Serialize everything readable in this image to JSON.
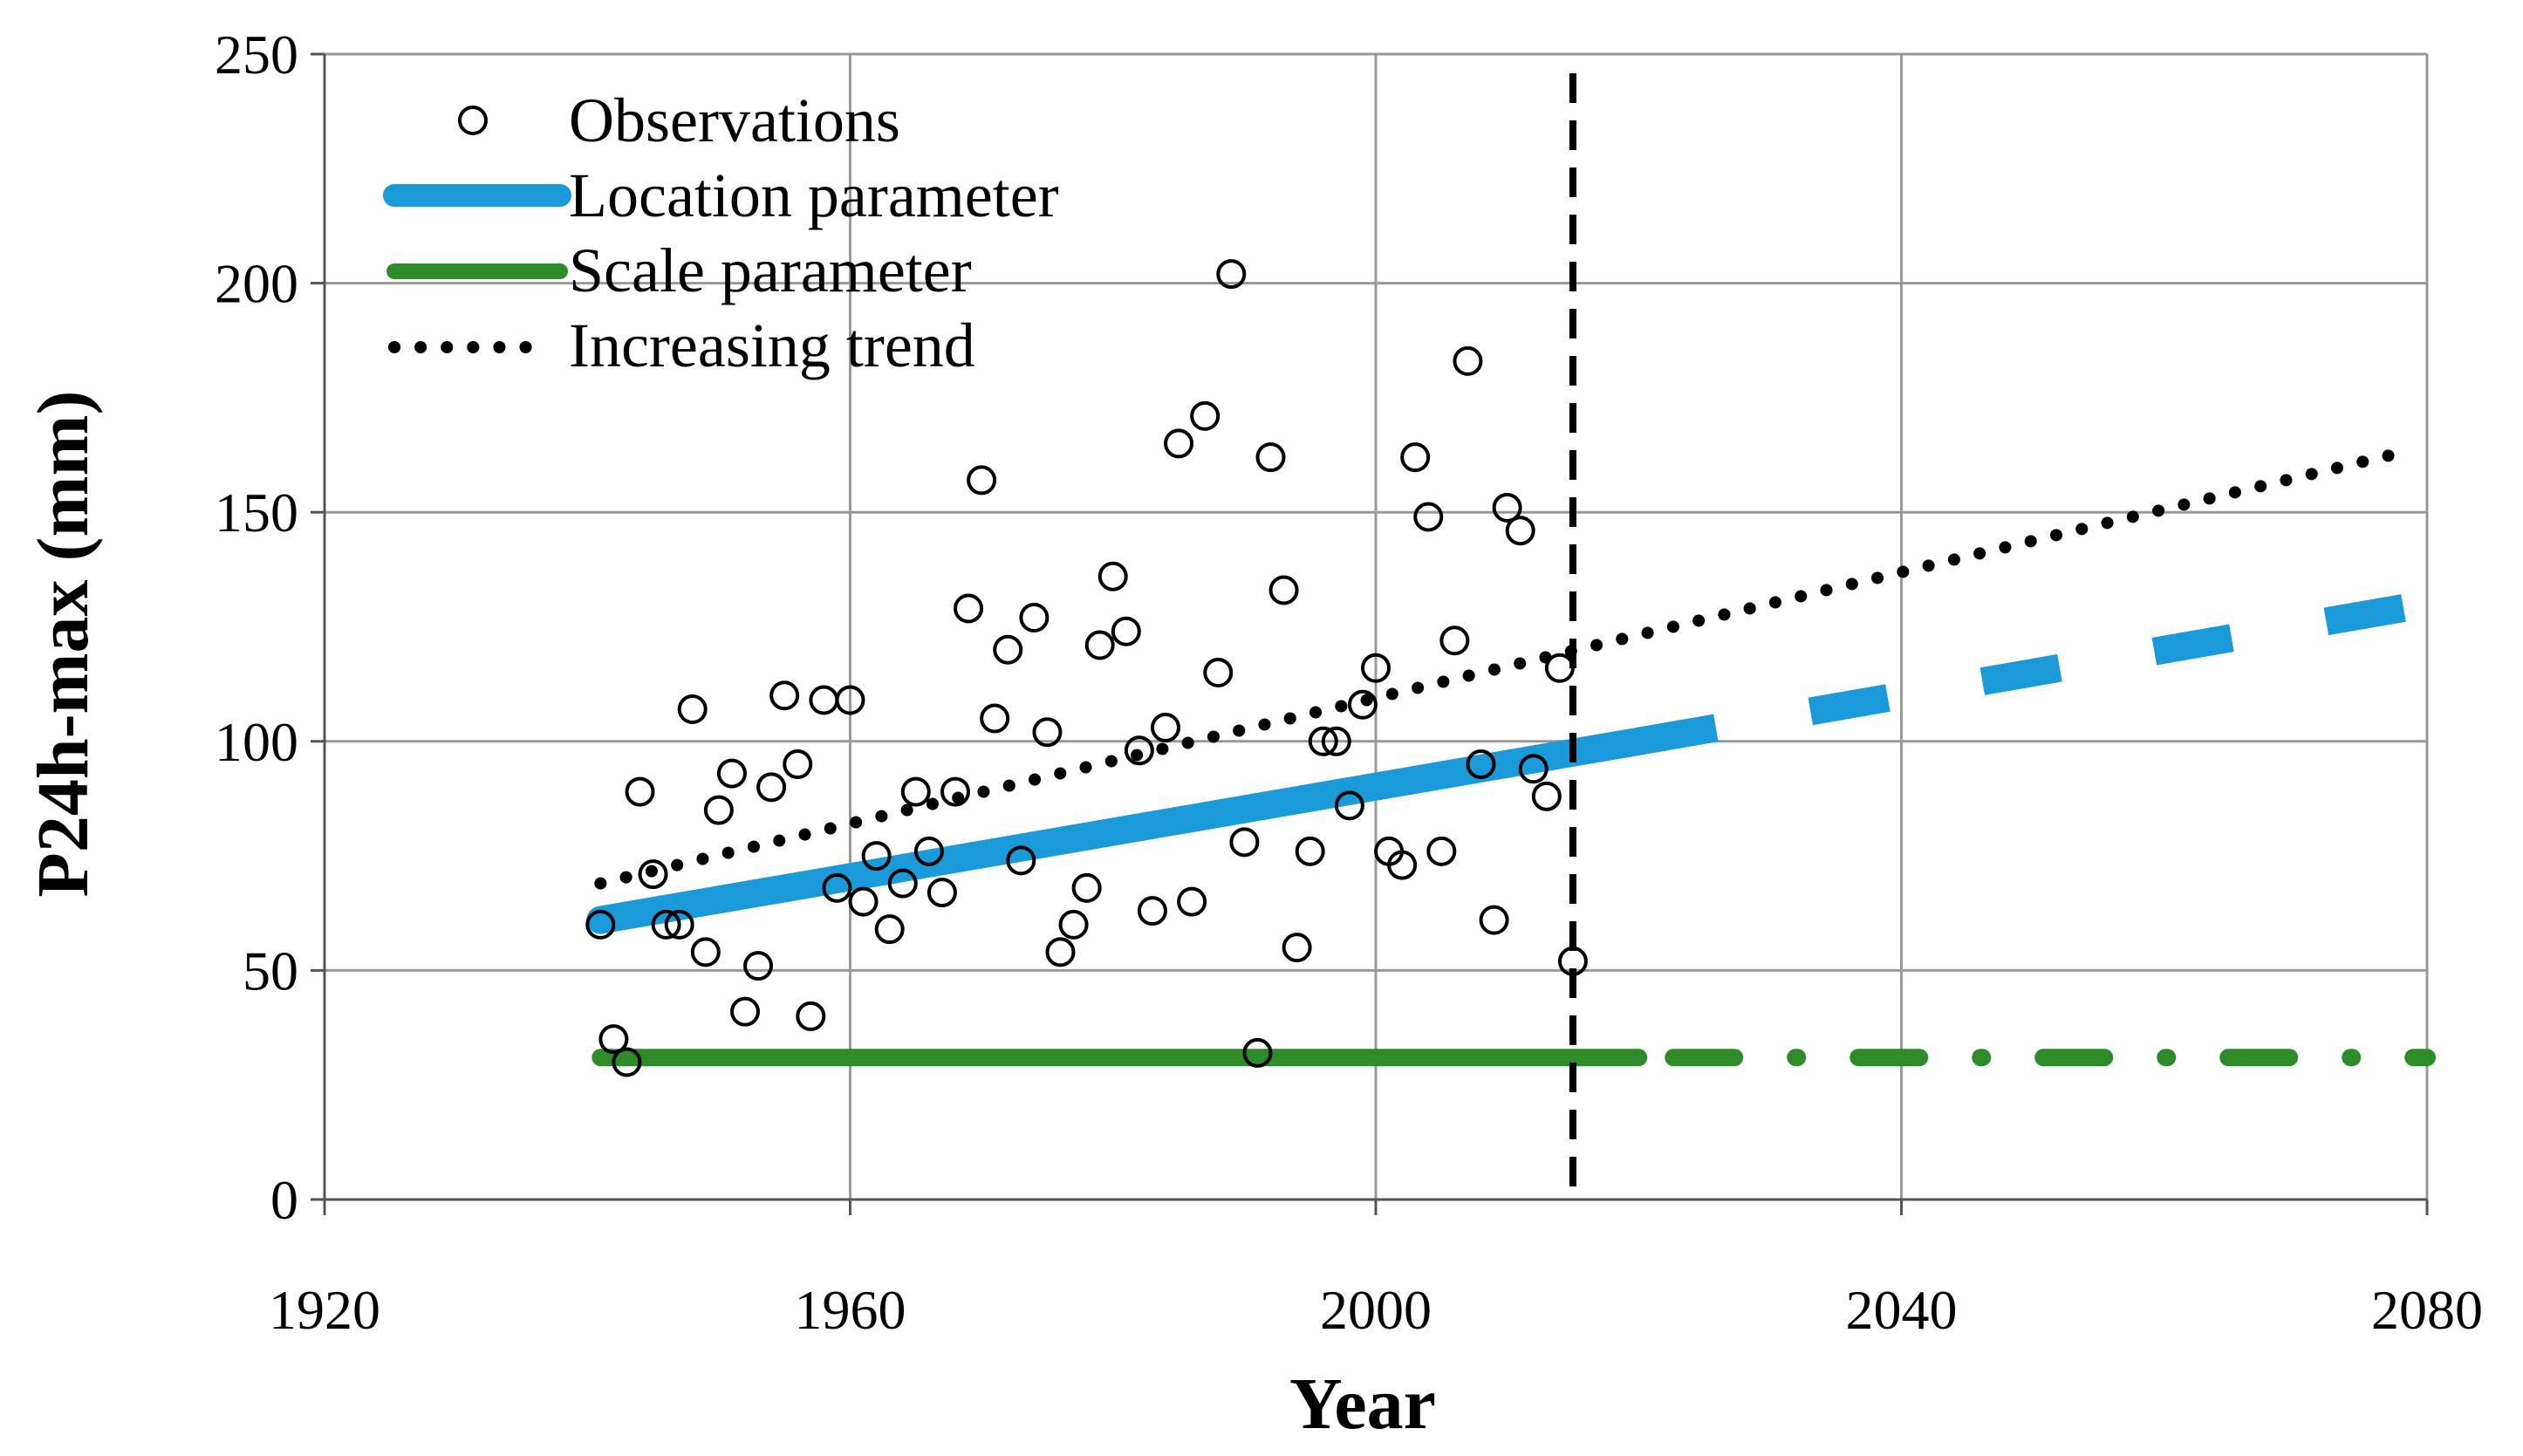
{
  "chart_data": {
    "type": "scatter",
    "title": "",
    "xlabel": "Year",
    "ylabel": "P24h-max (mm)",
    "xlim": [
      1920,
      2080
    ],
    "ylim": [
      0,
      250
    ],
    "xticks": [
      1920,
      1960,
      2000,
      2040,
      2080
    ],
    "yticks": [
      0,
      50,
      100,
      150,
      200,
      250
    ],
    "grid": true,
    "legend_position": "top-left",
    "colors": {
      "observations": "#000000",
      "location": "#1b9ad9",
      "scale": "#2e8b2a",
      "trend": "#000000",
      "grid": "#999999",
      "divider": "#000000"
    },
    "divider_year": 2015,
    "series": [
      {
        "name": "Observations",
        "kind": "markers",
        "points": [
          [
            1941,
            60
          ],
          [
            1942,
            35
          ],
          [
            1943,
            30
          ],
          [
            1944,
            89
          ],
          [
            1945,
            71
          ],
          [
            1946,
            60
          ],
          [
            1947,
            60
          ],
          [
            1948,
            107
          ],
          [
            1949,
            54
          ],
          [
            1950,
            85
          ],
          [
            1951,
            93
          ],
          [
            1952,
            41
          ],
          [
            1953,
            51
          ],
          [
            1954,
            90
          ],
          [
            1955,
            110
          ],
          [
            1956,
            95
          ],
          [
            1957,
            40
          ],
          [
            1958,
            109
          ],
          [
            1959,
            68
          ],
          [
            1960,
            109
          ],
          [
            1961,
            65
          ],
          [
            1962,
            75
          ],
          [
            1963,
            59
          ],
          [
            1964,
            69
          ],
          [
            1965,
            89
          ],
          [
            1966,
            76
          ],
          [
            1967,
            67
          ],
          [
            1968,
            89
          ],
          [
            1969,
            129
          ],
          [
            1970,
            157
          ],
          [
            1971,
            105
          ],
          [
            1972,
            120
          ],
          [
            1973,
            74
          ],
          [
            1974,
            127
          ],
          [
            1975,
            102
          ],
          [
            1976,
            54
          ],
          [
            1977,
            60
          ],
          [
            1978,
            68
          ],
          [
            1979,
            121
          ],
          [
            1980,
            136
          ],
          [
            1981,
            124
          ],
          [
            1982,
            98
          ],
          [
            1983,
            63
          ],
          [
            1984,
            103
          ],
          [
            1985,
            165
          ],
          [
            1986,
            65
          ],
          [
            1987,
            171
          ],
          [
            1988,
            115
          ],
          [
            1989,
            202
          ],
          [
            1990,
            78
          ],
          [
            1991,
            32
          ],
          [
            1992,
            162
          ],
          [
            1993,
            133
          ],
          [
            1994,
            55
          ],
          [
            1995,
            76
          ],
          [
            1996,
            100
          ],
          [
            1997,
            100
          ],
          [
            1998,
            86
          ],
          [
            1999,
            108
          ],
          [
            2000,
            116
          ],
          [
            2001,
            76
          ],
          [
            2002,
            73
          ],
          [
            2003,
            162
          ],
          [
            2004,
            149
          ],
          [
            2005,
            76
          ],
          [
            2006,
            122
          ],
          [
            2007,
            183
          ],
          [
            2008,
            95
          ],
          [
            2009,
            61
          ],
          [
            2010,
            151
          ],
          [
            2011,
            146
          ],
          [
            2012,
            94
          ],
          [
            2013,
            88
          ],
          [
            2014,
            116
          ],
          [
            2015,
            52
          ]
        ]
      },
      {
        "name": "Location parameter",
        "kind": "line",
        "solid": [
          [
            1941,
            61
          ],
          [
            2020,
            100
          ]
        ],
        "projected": [
          [
            2020,
            100
          ],
          [
            2080,
            130
          ]
        ]
      },
      {
        "name": "Scale parameter",
        "kind": "line",
        "solid": [
          [
            1941,
            31
          ],
          [
            2020,
            31
          ]
        ],
        "projected": [
          [
            2020,
            31
          ],
          [
            2080,
            31
          ]
        ]
      },
      {
        "name": "Increasing trend",
        "kind": "dotted",
        "points": [
          [
            1941,
            69
          ],
          [
            2078,
            163
          ]
        ]
      }
    ]
  }
}
